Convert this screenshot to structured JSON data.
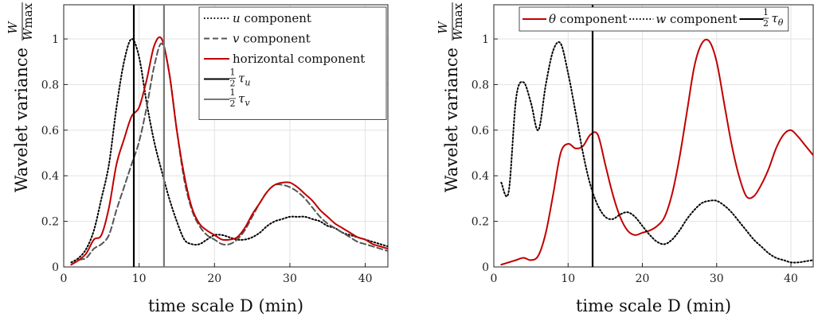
{
  "chart_data": [
    {
      "type": "line",
      "xlabel": "time scale D (min)",
      "ylabel": {
        "text": "Wavelet variance",
        "frac_num": "W",
        "frac_den": "W",
        "frac_den_sub": "max"
      },
      "xlim": [
        0,
        43
      ],
      "ylim": [
        0,
        1.15
      ],
      "xticks": [
        0,
        10,
        20,
        30,
        40
      ],
      "yticks": [
        0,
        0.2,
        0.4,
        0.6,
        0.8,
        1
      ],
      "ytick_labels": [
        "0",
        "0.2",
        "0.4",
        "0.6",
        "0.8",
        "1"
      ],
      "grid": true,
      "legend": "top-right",
      "series": [
        {
          "name": "u component",
          "name_var": "u",
          "name_rest": " component",
          "color": "#000000",
          "style": "dotted",
          "x": [
            1,
            2,
            3,
            4,
            5,
            6,
            7,
            8,
            9,
            10,
            11,
            12,
            13,
            14,
            15,
            16,
            17,
            18,
            19,
            20,
            21,
            22,
            23,
            24,
            25,
            26,
            27,
            28,
            29,
            30,
            31,
            32,
            33,
            34,
            35,
            36,
            37,
            38,
            39,
            40,
            41,
            42,
            43
          ],
          "y": [
            0.02,
            0.04,
            0.08,
            0.16,
            0.3,
            0.45,
            0.7,
            0.9,
            1.0,
            0.92,
            0.72,
            0.55,
            0.42,
            0.3,
            0.2,
            0.12,
            0.1,
            0.1,
            0.12,
            0.14,
            0.14,
            0.13,
            0.12,
            0.12,
            0.13,
            0.15,
            0.18,
            0.2,
            0.21,
            0.22,
            0.22,
            0.22,
            0.21,
            0.2,
            0.18,
            0.17,
            0.15,
            0.14,
            0.13,
            0.12,
            0.11,
            0.1,
            0.09
          ]
        },
        {
          "name": "v component",
          "name_var": "v",
          "name_rest": " component",
          "color": "#555555",
          "style": "dashed",
          "x": [
            1,
            2,
            3,
            4,
            5,
            6,
            7,
            8,
            9,
            10,
            11,
            12,
            13,
            14,
            15,
            16,
            17,
            18,
            19,
            20,
            21,
            22,
            23,
            24,
            25,
            26,
            27,
            28,
            29,
            30,
            31,
            32,
            33,
            34,
            35,
            36,
            37,
            38,
            39,
            40,
            41,
            42,
            43
          ],
          "y": [
            0.01,
            0.03,
            0.04,
            0.08,
            0.1,
            0.14,
            0.25,
            0.35,
            0.45,
            0.55,
            0.7,
            0.88,
            0.98,
            0.85,
            0.6,
            0.38,
            0.25,
            0.18,
            0.14,
            0.12,
            0.1,
            0.1,
            0.12,
            0.16,
            0.22,
            0.28,
            0.33,
            0.36,
            0.36,
            0.35,
            0.33,
            0.3,
            0.26,
            0.22,
            0.19,
            0.17,
            0.15,
            0.13,
            0.11,
            0.1,
            0.09,
            0.08,
            0.07
          ]
        },
        {
          "name": "horizontal component",
          "color": "#c00000",
          "style": "solid",
          "x": [
            1,
            2,
            3,
            4,
            5,
            6,
            7,
            8,
            9,
            10,
            11,
            12,
            13,
            14,
            15,
            16,
            17,
            18,
            19,
            20,
            21,
            22,
            23,
            24,
            25,
            26,
            27,
            28,
            29,
            30,
            31,
            32,
            33,
            34,
            35,
            36,
            37,
            38,
            39,
            40,
            41,
            42,
            43
          ],
          "y": [
            0.01,
            0.03,
            0.06,
            0.12,
            0.14,
            0.26,
            0.45,
            0.56,
            0.66,
            0.7,
            0.82,
            0.97,
            1.0,
            0.85,
            0.6,
            0.4,
            0.26,
            0.19,
            0.16,
            0.14,
            0.12,
            0.12,
            0.13,
            0.17,
            0.23,
            0.28,
            0.33,
            0.36,
            0.37,
            0.37,
            0.35,
            0.32,
            0.29,
            0.25,
            0.22,
            0.19,
            0.17,
            0.15,
            0.13,
            0.12,
            0.1,
            0.09,
            0.08
          ]
        },
        {
          "name": "½τ_u",
          "frac_num": "1",
          "frac_den": "2",
          "sym": "τ",
          "sub": "u",
          "color": "#000000",
          "style": "vline",
          "x_value": 9.3
        },
        {
          "name": "½τ_v",
          "frac_num": "1",
          "frac_den": "2",
          "sym": "τ",
          "sub": "v",
          "color": "#777777",
          "style": "vline",
          "x_value": 13.3
        }
      ]
    },
    {
      "type": "line",
      "xlabel": "time scale D (min)",
      "ylabel": {
        "text": "Wavelet variance",
        "frac_num": "W",
        "frac_den": "W",
        "frac_den_sub": "max"
      },
      "xlim": [
        0,
        43
      ],
      "ylim": [
        0,
        1.15
      ],
      "xticks": [
        0,
        10,
        20,
        30,
        40
      ],
      "yticks": [
        0,
        0.2,
        0.4,
        0.6,
        0.8,
        1
      ],
      "ytick_labels": [
        "0",
        "0.2",
        "0.4",
        "0.6",
        "0.8",
        "1"
      ],
      "grid": true,
      "legend": "top (horizontal)",
      "series": [
        {
          "name": "θ component",
          "name_var": "θ",
          "name_rest": " component",
          "color": "#c00000",
          "style": "solid",
          "x": [
            1,
            2,
            3,
            4,
            5,
            6,
            7,
            8,
            9,
            10,
            11,
            12,
            13,
            14,
            15,
            16,
            17,
            18,
            19,
            20,
            21,
            22,
            23,
            24,
            25,
            26,
            27,
            28,
            29,
            30,
            31,
            32,
            33,
            34,
            35,
            36,
            37,
            38,
            39,
            40,
            41,
            42,
            43
          ],
          "y": [
            0.01,
            0.02,
            0.03,
            0.04,
            0.03,
            0.05,
            0.15,
            0.32,
            0.5,
            0.54,
            0.52,
            0.53,
            0.58,
            0.58,
            0.45,
            0.32,
            0.22,
            0.16,
            0.14,
            0.15,
            0.16,
            0.18,
            0.22,
            0.32,
            0.48,
            0.68,
            0.88,
            0.98,
            0.99,
            0.9,
            0.72,
            0.54,
            0.4,
            0.31,
            0.31,
            0.36,
            0.43,
            0.52,
            0.58,
            0.6,
            0.57,
            0.53,
            0.49
          ]
        },
        {
          "name": "w component",
          "name_var": "w",
          "name_rest": " component",
          "color": "#000000",
          "style": "dotted",
          "x": [
            1,
            2,
            3,
            4,
            5,
            6,
            7,
            8,
            9,
            10,
            11,
            12,
            13,
            14,
            15,
            16,
            17,
            18,
            19,
            20,
            21,
            22,
            23,
            24,
            25,
            26,
            27,
            28,
            29,
            30,
            31,
            32,
            33,
            34,
            35,
            36,
            37,
            38,
            39,
            40,
            41,
            42,
            43
          ],
          "y": [
            0.37,
            0.33,
            0.74,
            0.81,
            0.72,
            0.6,
            0.8,
            0.95,
            0.98,
            0.85,
            0.68,
            0.5,
            0.36,
            0.27,
            0.22,
            0.21,
            0.23,
            0.24,
            0.22,
            0.18,
            0.14,
            0.11,
            0.1,
            0.12,
            0.16,
            0.21,
            0.25,
            0.28,
            0.29,
            0.29,
            0.27,
            0.24,
            0.2,
            0.16,
            0.12,
            0.09,
            0.06,
            0.04,
            0.03,
            0.02,
            0.02,
            0.025,
            0.03
          ]
        },
        {
          "name": "½τ_θ",
          "frac_num": "1",
          "frac_den": "2",
          "sym": "τ",
          "sub": "θ",
          "color": "#000000",
          "style": "vline",
          "x_value": 13.3
        }
      ]
    }
  ]
}
